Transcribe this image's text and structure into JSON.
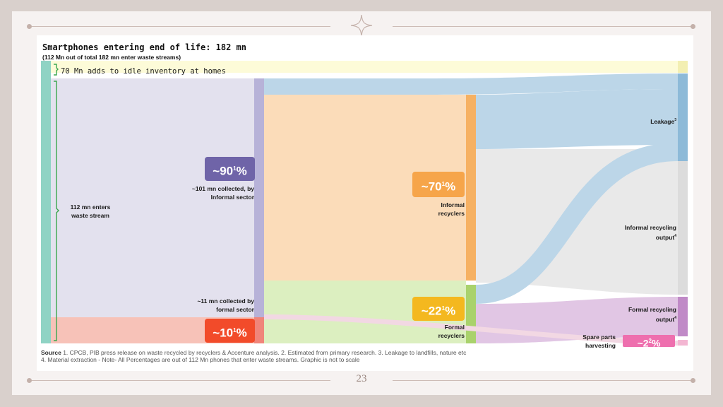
{
  "slide": {
    "page_number": "23"
  },
  "figure": {
    "title": "Smartphones entering end of life: 182 mn",
    "subtitle": "(112 Mn out of total 182 mn enter waste streams)",
    "idle_label": "70 Mn adds to idle inventory at homes",
    "waste_stream_label_1": "112 mn enters",
    "waste_stream_label_2": "waste stream",
    "informal_collected_1": "~101 mn collected, by",
    "informal_collected_2": "Informal sector",
    "formal_collected_1": "~11 mn collected by",
    "formal_collected_2": "formal sector",
    "informal_recyclers_1": "Informal",
    "informal_recyclers_2": "recyclers",
    "formal_recyclers_1": "Formal",
    "formal_recyclers_2": "recyclers",
    "leakage": "Leakage",
    "leakage_sup": "3",
    "informal_output_1": "Informal recycling",
    "informal_output_2": "output",
    "informal_output_sup": "4",
    "formal_output_1": "Formal recycling",
    "formal_output_2": "output",
    "formal_output_sup": "4",
    "spare_1": "Spare parts",
    "spare_2": "harvesting"
  },
  "badges": {
    "informal_collection": {
      "value": "~90",
      "sup": "1",
      "unit": "%"
    },
    "formal_collection": {
      "value": "~10",
      "sup": "1",
      "unit": "%"
    },
    "informal_recycling": {
      "value": "~70",
      "sup": "1",
      "unit": "%"
    },
    "formal_recycling": {
      "value": "~22",
      "sup": "1",
      "unit": "%"
    },
    "spare_parts": {
      "value": "~2",
      "sup": "2",
      "unit": "%"
    }
  },
  "source": {
    "label": "Source",
    "line1": " 1. CPCB, PIB press release on waste recycled by recyclers & Accenture analysis. 2. Estimated from primary research. 3. Leakage to landfills, nature etc",
    "line2": "4. Material extraction - Note- All Percentages are out of 112 Mn phones that enter waste streams. Graphic is not to scale"
  },
  "colors": {
    "teal": "#8fd3c4",
    "lavender": "#e3e1ee",
    "lavender_bar": "#b7b2d8",
    "pink": "#f7c2b8",
    "red_bar": "#f0857a",
    "peach": "#fbdcb9",
    "orange_bar": "#f6b163",
    "green": "#dcefc0",
    "green_bar": "#a9d26c",
    "blue": "#bcd6e8",
    "blue_bar": "#8dbad8",
    "grey": "#e9e9e9",
    "purple": "#e1c6e4",
    "purple_bar": "#c08ac7",
    "yellow": "#fdfbd8",
    "badge_purple": "#6f64a8",
    "badge_red": "#f24b2a",
    "badge_orange": "#f6a54a",
    "badge_yellow": "#f4b81f",
    "badge_pink": "#ee6fae"
  }
}
